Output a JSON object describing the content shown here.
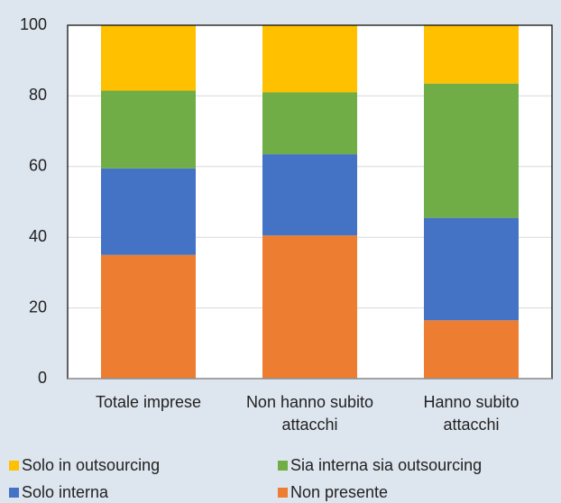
{
  "chart_data": {
    "type": "stacked_bar",
    "categories": [
      "Totale imprese",
      "Non hanno subito attacchi",
      "Hanno subito attacchi"
    ],
    "series": [
      {
        "name": "Non presente",
        "color": "#ed7d31",
        "values": [
          35,
          40.5,
          16.5
        ]
      },
      {
        "name": "Solo interna",
        "color": "#4472c4",
        "values": [
          24.5,
          23,
          29
        ]
      },
      {
        "name": "Sia interna sia outsourcing",
        "color": "#70ad47",
        "values": [
          22,
          17.5,
          38
        ]
      },
      {
        "name": "Solo in outsourcing",
        "color": "#ffc000",
        "values": [
          18.5,
          19,
          16.5
        ]
      }
    ],
    "ylim": [
      0,
      100
    ],
    "yticks": [
      0,
      20,
      40,
      60,
      80,
      100
    ],
    "grid": true
  }
}
